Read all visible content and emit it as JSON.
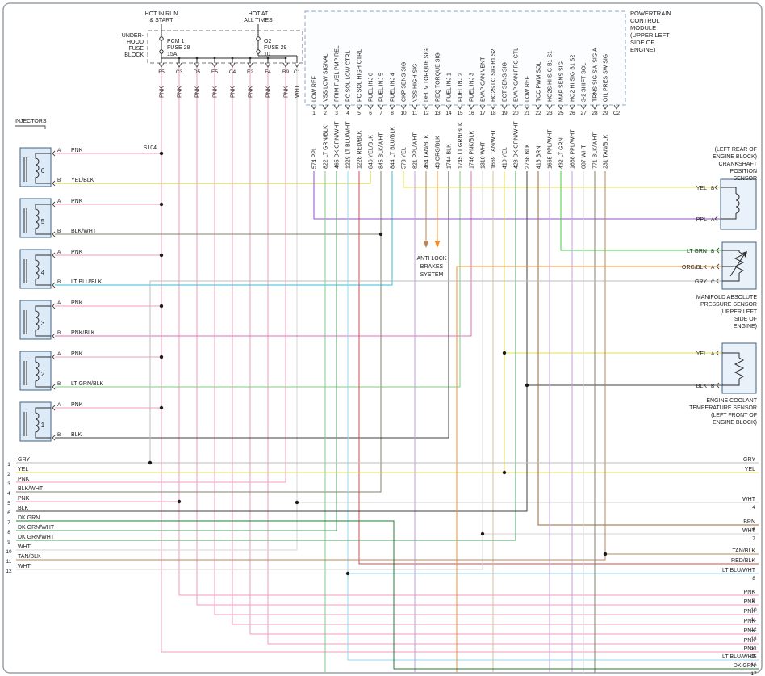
{
  "colors": {
    "PNK": "#f29bbf",
    "YEL": "#e8df4e",
    "YEL/BLK": "#cfc433",
    "BLK": "#3f3f3f",
    "BLK/WHT": "#80806e",
    "WHT": "#d5d5d5",
    "GRY": "#bcbcbc",
    "PPL": "#9052c8",
    "PPL/WHT": "#c49fe2",
    "LT GRN": "#46cc46",
    "LT GRN/BLK": "#7fcf7f",
    "DK GRN": "#207b36",
    "DK GRN/WHT": "#4f9f6a",
    "LT BLU/BLK": "#38b9d9",
    "LT BLU/WHT": "#93d9ec",
    "RED/BLK": "#cc4c4c",
    "TAN/BLK": "#b5895c",
    "TAN/WHT": "#d9c09a",
    "ORG/BLK": "#f0902c",
    "BRN": "#9a6a3a",
    "PNK/BLK": "#e26cb8"
  },
  "diagram": {
    "fuse_block": {
      "name_lines": [
        "UNDER-",
        "HOOD",
        "FUSE",
        "BLOCK"
      ],
      "feeds": [
        {
          "lines": [
            "HOT IN RUN",
            "& START"
          ]
        },
        {
          "lines": [
            "HOT AT",
            "ALL TIMES"
          ]
        }
      ],
      "fuses": [
        {
          "label_lines": [
            "PCM 1",
            "FUSE 28",
            "15A"
          ]
        },
        {
          "label_lines": [
            "O2",
            "FUSE 29",
            "10"
          ]
        }
      ],
      "pins": [
        {
          "pin": "F5",
          "wire": "PNK"
        },
        {
          "pin": "C3",
          "wire": "PNK"
        },
        {
          "pin": "D5",
          "wire": "PNK"
        },
        {
          "pin": "E5",
          "wire": "PNK"
        },
        {
          "pin": "C4",
          "wire": "PNK"
        },
        {
          "pin": "E2",
          "wire": "PNK"
        },
        {
          "pin": "F4",
          "wire": "PNK"
        },
        {
          "pin": "B9",
          "wire": "PNK"
        },
        {
          "pin": "C1",
          "wire": "WHT"
        }
      ]
    },
    "pcm": {
      "title_lines": [
        "POWERTRAIN",
        "CONTROL",
        "MODULE",
        "(UPPER LEFT",
        "SIDE OF",
        "ENGINE)"
      ],
      "connector_right": "C2",
      "pins": [
        {
          "pin": "1",
          "signal": "LOW REF",
          "num": "574",
          "color": "PPL"
        },
        {
          "pin": "2",
          "signal": "VSS LOW SIGNAL",
          "num": "822",
          "color": "LT GRN/BLK"
        },
        {
          "pin": "3",
          "signal": "PRIM FUEL PMP REL",
          "num": "465",
          "color": "DK GRN/WHT"
        },
        {
          "pin": "4",
          "signal": "PC SOL LOW CTRL",
          "num": "1229",
          "color": "LT BLU/WHT"
        },
        {
          "pin": "5",
          "signal": "PC SOL HIGH CTRL",
          "num": "1228",
          "color": "RED/BLK"
        },
        {
          "pin": "6",
          "signal": "FUEL INJ 6",
          "num": "846",
          "color": "YEL/BLK"
        },
        {
          "pin": "7",
          "signal": "FUEL INJ 5",
          "num": "845",
          "color": "BLK/WHT"
        },
        {
          "pin": "8",
          "signal": "FUEL INJ 4",
          "num": "844",
          "color": "LT BLU/BLK"
        },
        {
          "pin": "10",
          "signal": "CKP SENS SIG",
          "num": "573",
          "color": "YEL"
        },
        {
          "pin": "11",
          "signal": "VSS HIGH SIG",
          "num": "821",
          "color": "PPL/WHT"
        },
        {
          "pin": "12",
          "signal": "DELIV TORQUE SIG",
          "num": "464",
          "color": "TAN/BLK"
        },
        {
          "pin": "13",
          "signal": "REQ TORQUE SIG",
          "num": "43",
          "color": "ORG/BLK"
        },
        {
          "pin": "14",
          "signal": "FUEL INJ 1",
          "num": "1744",
          "color": "BLK"
        },
        {
          "pin": "15",
          "signal": "FUEL INJ 2",
          "num": "1745",
          "color": "LT GRN/BLK"
        },
        {
          "pin": "16",
          "signal": "FUEL INJ 3",
          "num": "1746",
          "color": "PNK/BLK"
        },
        {
          "pin": "17",
          "signal": "EVAP CAN VENT",
          "num": "1310",
          "color": "WHT"
        },
        {
          "pin": "18",
          "signal": "HO2S LO SIG B1 S2",
          "num": "1669",
          "color": "TAN/WHT"
        },
        {
          "pin": "19",
          "signal": "ECT SENS SIG",
          "num": "410",
          "color": "YEL"
        },
        {
          "pin": "20",
          "signal": "EVAP CAN PRG CTL",
          "num": "428",
          "color": "DK GRN/WHT"
        },
        {
          "pin": "21",
          "signal": "LOW REF",
          "num": "2768",
          "color": "BLK"
        },
        {
          "pin": "22",
          "signal": "TCC PWM SOL",
          "num": "418",
          "color": "BRN"
        },
        {
          "pin": "23",
          "signal": "HO2S HI SIG B1 S1",
          "num": "1665",
          "color": "PPL/WHT"
        },
        {
          "pin": "25",
          "signal": "MAP SENS SIG",
          "num": "432",
          "color": "LT GRN"
        },
        {
          "pin": "26",
          "signal": "HO2 HI SIG B1 S2",
          "num": "1668",
          "color": "PPL/WHT"
        },
        {
          "pin": "27",
          "signal": "3-2 SHIFT SOL",
          "num": "687",
          "color": "WHT"
        },
        {
          "pin": "28",
          "signal": "TRNS SIG SW SIG A",
          "num": "771",
          "color": "BLK/WHT"
        },
        {
          "pin": "29",
          "signal": "OIL PRES SW SIG",
          "num": "231",
          "color": "TAN/BLK"
        }
      ]
    },
    "splice": "S104",
    "injectors_title": "INJECTORS",
    "injectors": [
      {
        "num": "6",
        "pin_a": "A",
        "wire_a": "PNK",
        "pin_b": "B",
        "wire_b": "YEL/BLK"
      },
      {
        "num": "5",
        "pin_a": "A",
        "wire_a": "PNK",
        "pin_b": "B",
        "wire_b": "BLK/WHT"
      },
      {
        "num": "4",
        "pin_a": "A",
        "wire_a": "PNK",
        "pin_b": "B",
        "wire_b": "LT BLU/BLK"
      },
      {
        "num": "3",
        "pin_a": "A",
        "wire_a": "PNK",
        "pin_b": "B",
        "wire_b": "PNK/BLK"
      },
      {
        "num": "2",
        "pin_a": "A",
        "wire_a": "PNK",
        "pin_b": "B",
        "wire_b": "LT GRN/BLK"
      },
      {
        "num": "1",
        "pin_a": "A",
        "wire_a": "PNK",
        "pin_b": "B",
        "wire_b": "BLK"
      }
    ],
    "abs": {
      "lines": [
        "ANTI LOCK",
        "BRAKES",
        "SYSTEM"
      ]
    },
    "sensors": {
      "ckp": {
        "title_lines": [
          "(LEFT REAR OF",
          "ENGINE BLOCK)",
          "CRANKSHAFT",
          "POSITION",
          "SENSOR"
        ],
        "pins": [
          {
            "wire": "YEL",
            "pin": "B"
          },
          {
            "wire": "PPL",
            "pin": "A"
          }
        ]
      },
      "map": {
        "title_lines": [
          "MANIFOLD ABSOLUTE",
          "PRESSURE SENSOR",
          "(UPPER LEFT",
          "SIDE OF",
          "ENGINE)"
        ],
        "pins": [
          {
            "wire": "LT GRN",
            "pin": "B"
          },
          {
            "wire": "ORG/BLK",
            "pin": "A"
          },
          {
            "wire": "GRY",
            "pin": "C"
          }
        ]
      },
      "ect": {
        "title_lines": [
          "ENGINE COOLANT",
          "TEMPERATURE SENSOR",
          "(LEFT FRONT OF",
          "ENGINE BLOCK)"
        ],
        "pins": [
          {
            "wire": "YEL",
            "pin": "A"
          },
          {
            "wire": "BLK",
            "pin": "B"
          }
        ]
      }
    },
    "left_rows": [
      {
        "num": "1",
        "wire": "GRY"
      },
      {
        "num": "2",
        "wire": "YEL"
      },
      {
        "num": "3",
        "wire": "PNK"
      },
      {
        "num": "4",
        "wire": "BLK/WHT"
      },
      {
        "num": "5",
        "wire": "PNK"
      },
      {
        "num": "6",
        "wire": "BLK"
      },
      {
        "num": "7",
        "wire": "DK GRN"
      },
      {
        "num": "8",
        "wire": "DK GRN/WHT"
      },
      {
        "num": "9",
        "wire": "DK GRN/WHT"
      },
      {
        "num": "10",
        "wire": "WHT"
      },
      {
        "num": "11",
        "wire": "TAN/BLK"
      },
      {
        "num": "12",
        "wire": "WHT"
      }
    ],
    "right_rows": [
      {
        "num": "",
        "wire": "GRY"
      },
      {
        "num": "",
        "wire": "YEL"
      },
      {
        "num": "4",
        "wire": "WHT"
      },
      {
        "num": "6",
        "wire": "BRN"
      },
      {
        "num": "7",
        "wire": "WHT"
      },
      {
        "num": "",
        "wire": "TAN/BLK"
      },
      {
        "num": "",
        "wire": "RED/BLK"
      },
      {
        "num": "8",
        "wire": "LT BLU/WHT"
      },
      {
        "num": "9",
        "wire": "PNK"
      },
      {
        "num": "10",
        "wire": "PNK"
      },
      {
        "num": "11",
        "wire": "PNK"
      },
      {
        "num": "12",
        "wire": "PNK"
      },
      {
        "num": "13",
        "wire": "PNK"
      },
      {
        "num": "14",
        "wire": "PNK"
      },
      {
        "num": "15",
        "wire": "PNK"
      },
      {
        "num": "16",
        "wire": "LT BLU/WHT"
      },
      {
        "num": "17",
        "wire": "DK GRN"
      }
    ]
  }
}
